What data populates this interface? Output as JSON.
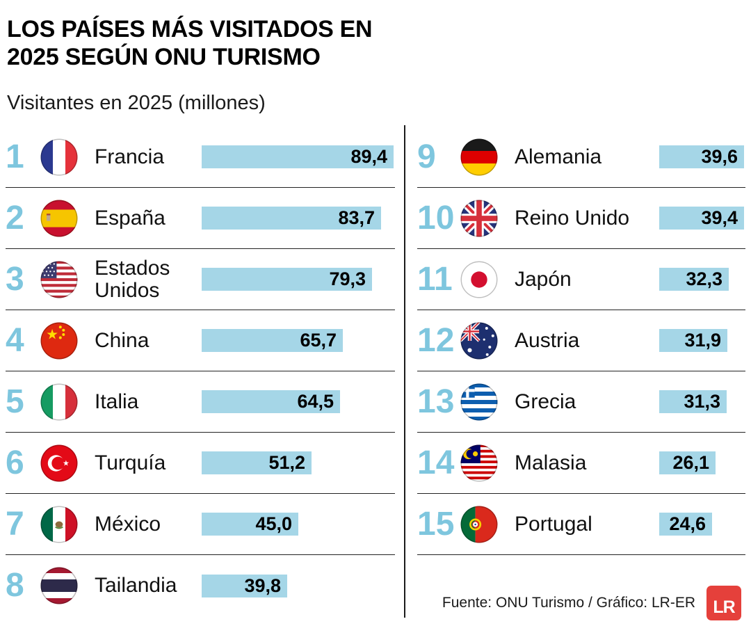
{
  "title_lines": [
    "LOS PAÍSES MÁS VISITADOS EN",
    "2025 SEGÚN ONU TURISMO"
  ],
  "subtitle": "Visitantes en 2025 (millones)",
  "footer": {
    "source": "Fuente: ONU Turismo / Gráfico: LR-ER",
    "logo_text": "LR"
  },
  "colors": {
    "bar_blue": "#A5D6E7",
    "rank_blue": "#7EC6DE",
    "logo_red": "#E5403B",
    "ink": "#111111"
  },
  "chart_data": {
    "type": "bar",
    "orientation": "horizontal",
    "title": "LOS PAÍSES MÁS VISITADOS EN 2025 SEGÚN ONU TURISMO",
    "subtitle": "Visitantes en 2025 (millones)",
    "unit": "millones de visitantes",
    "xlim": [
      0,
      90
    ],
    "source": "Fuente: ONU Turismo / Gráfico: LR-ER",
    "columns": [
      {
        "rows": [
          {
            "rank": 1,
            "country": "Francia",
            "flag": "france",
            "value": 89.4,
            "value_label": "89,4"
          },
          {
            "rank": 2,
            "country": "España",
            "flag": "spain",
            "value": 83.7,
            "value_label": "83,7"
          },
          {
            "rank": 3,
            "country": "Estados Unidos",
            "flag": "usa",
            "value": 79.3,
            "value_label": "79,3"
          },
          {
            "rank": 4,
            "country": "China",
            "flag": "china",
            "value": 65.7,
            "value_label": "65,7"
          },
          {
            "rank": 5,
            "country": "Italia",
            "flag": "italy",
            "value": 64.5,
            "value_label": "64,5"
          },
          {
            "rank": 6,
            "country": "Turquía",
            "flag": "turkey",
            "value": 51.2,
            "value_label": "51,2"
          },
          {
            "rank": 7,
            "country": "México",
            "flag": "mexico",
            "value": 45.0,
            "value_label": "45,0"
          },
          {
            "rank": 8,
            "country": "Tailandia",
            "flag": "thailand",
            "value": 39.8,
            "value_label": "39,8"
          }
        ]
      },
      {
        "rows": [
          {
            "rank": 9,
            "country": "Alemania",
            "flag": "germany",
            "value": 39.6,
            "value_label": "39,6"
          },
          {
            "rank": 10,
            "country": "Reino Unido",
            "flag": "uk",
            "value": 39.4,
            "value_label": "39,4"
          },
          {
            "rank": 11,
            "country": "Japón",
            "flag": "japan",
            "value": 32.3,
            "value_label": "32,3"
          },
          {
            "rank": 12,
            "country": "Austria",
            "flag": "austria",
            "value": 31.9,
            "value_label": "31,9"
          },
          {
            "rank": 13,
            "country": "Grecia",
            "flag": "greece",
            "value": 31.3,
            "value_label": "31,3"
          },
          {
            "rank": 14,
            "country": "Malasia",
            "flag": "malaysia",
            "value": 26.1,
            "value_label": "26,1"
          },
          {
            "rank": 15,
            "country": "Portugal",
            "flag": "portugal",
            "value": 24.6,
            "value_label": "24,6"
          }
        ]
      }
    ]
  }
}
